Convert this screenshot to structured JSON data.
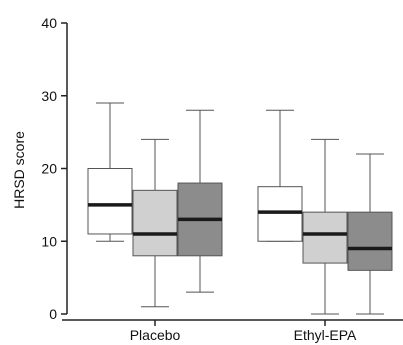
{
  "chart_data": {
    "type": "boxplot",
    "ylabel": "HRSD score",
    "ylim": [
      0,
      40
    ],
    "yticks": [
      0,
      10,
      20,
      30,
      40
    ],
    "grid": false,
    "categories": [
      "Placebo",
      "Ethyl-EPA"
    ],
    "series": [
      {
        "color": "#ffffff",
        "boxes": [
          {
            "min": 10,
            "q1": 11,
            "median": 15,
            "q3": 20,
            "max": 29
          },
          {
            "min": 10,
            "q1": 10,
            "median": 14,
            "q3": 17.5,
            "max": 28
          }
        ]
      },
      {
        "color": "#d0d0d0",
        "boxes": [
          {
            "min": 1,
            "q1": 8,
            "median": 11,
            "q3": 17,
            "max": 24
          },
          {
            "min": 0,
            "q1": 7,
            "median": 11,
            "q3": 14,
            "max": 24
          }
        ]
      },
      {
        "color": "#8c8c8c",
        "boxes": [
          {
            "min": 3,
            "q1": 8,
            "median": 13,
            "q3": 18,
            "max": 28
          },
          {
            "min": 0,
            "q1": 6,
            "median": 9,
            "q3": 14,
            "max": 22
          }
        ]
      }
    ]
  }
}
